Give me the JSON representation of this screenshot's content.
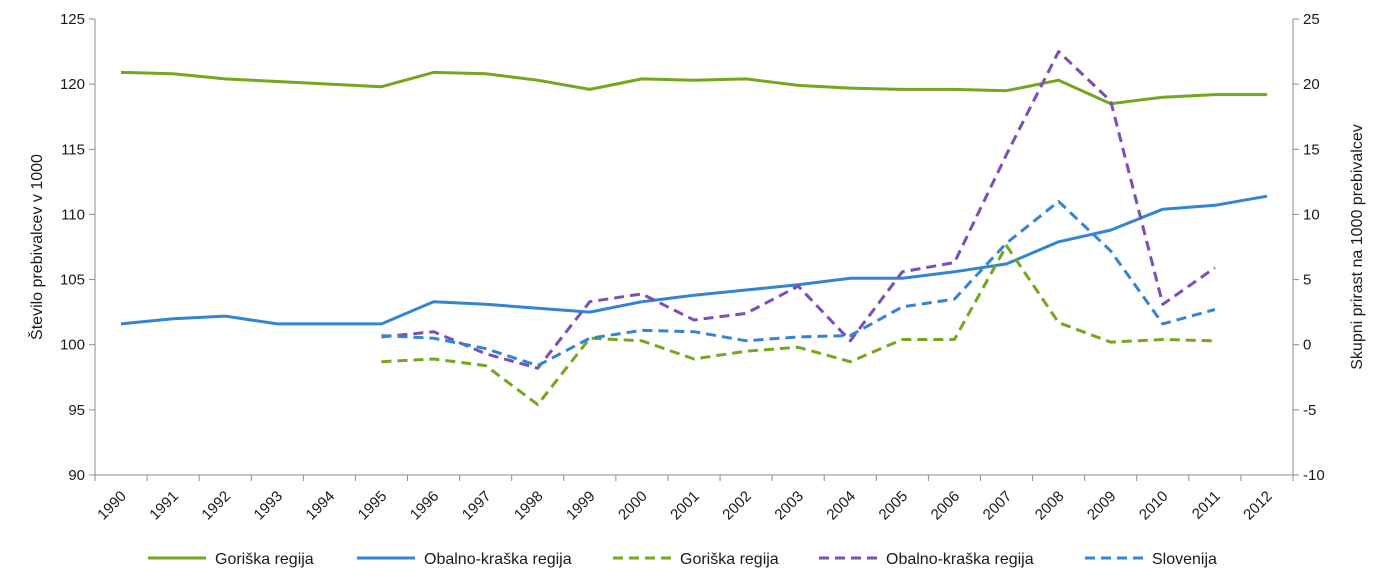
{
  "chart_data": {
    "type": "line",
    "title": "",
    "x": [
      "1990",
      "1991",
      "1992",
      "1993",
      "1994",
      "1995",
      "1996",
      "1997",
      "1998",
      "1999",
      "2000",
      "2001",
      "2002",
      "2003",
      "2004",
      "2005",
      "2006",
      "2007",
      "2008",
      "2009",
      "2010",
      "2011",
      "2012"
    ],
    "y_left": {
      "label": "Število prebivalcev v 1000",
      "ylim": [
        90,
        125
      ],
      "ticks": [
        "90",
        "95",
        "100",
        "105",
        "110",
        "115",
        "120",
        "125"
      ]
    },
    "y_right": {
      "label": "Skupni prirast na 1000 prebivalcev",
      "ylim": [
        -10,
        25
      ],
      "ticks": [
        "-10",
        "-5",
        "0",
        "5",
        "10",
        "15",
        "20",
        "25"
      ]
    },
    "grid": false,
    "legend_position": "bottom",
    "series": [
      {
        "name": "Goriška regija",
        "axis": "left",
        "color": "#77a51f",
        "dashed": false,
        "values": [
          120.9,
          120.8,
          120.4,
          120.2,
          120.0,
          119.8,
          120.9,
          120.8,
          120.3,
          119.6,
          120.4,
          120.3,
          120.4,
          119.9,
          119.7,
          119.6,
          119.6,
          119.5,
          120.3,
          118.5,
          119.0,
          119.2,
          119.2
        ]
      },
      {
        "name": "Obalno-kraška regija",
        "axis": "left",
        "color": "#3485d0",
        "dashed": false,
        "values": [
          101.6,
          102.0,
          102.2,
          101.6,
          101.6,
          101.6,
          103.3,
          103.1,
          102.8,
          102.5,
          103.3,
          103.8,
          104.2,
          104.6,
          105.1,
          105.1,
          105.6,
          106.2,
          107.9,
          108.8,
          110.4,
          110.7,
          111.4
        ]
      },
      {
        "name": "Goriška regija",
        "axis": "right",
        "color": "#77a51f",
        "dashed": true,
        "values": [
          null,
          null,
          null,
          null,
          null,
          -1.3,
          -1.1,
          -1.6,
          -4.6,
          0.5,
          0.3,
          -1.1,
          -0.5,
          -0.2,
          -1.3,
          0.4,
          0.4,
          7.6,
          1.7,
          0.2,
          0.4,
          0.3,
          null
        ]
      },
      {
        "name": "Obalno-kraška regija",
        "axis": "right",
        "color": "#7b4fb5",
        "dashed": true,
        "values": [
          null,
          null,
          null,
          null,
          null,
          0.6,
          1.0,
          -0.7,
          -1.8,
          3.3,
          3.9,
          1.9,
          2.4,
          4.5,
          0.3,
          5.6,
          6.3,
          14.6,
          22.5,
          18.7,
          3.1,
          5.9,
          null
        ]
      },
      {
        "name": "Slovenija",
        "axis": "right",
        "color": "#3485d0",
        "dashed": true,
        "values": [
          null,
          null,
          null,
          null,
          null,
          0.7,
          0.5,
          -0.3,
          -1.6,
          0.5,
          1.1,
          1.0,
          0.3,
          0.6,
          0.7,
          2.9,
          3.5,
          7.8,
          11.0,
          7.2,
          1.6,
          2.7,
          null
        ]
      }
    ]
  }
}
